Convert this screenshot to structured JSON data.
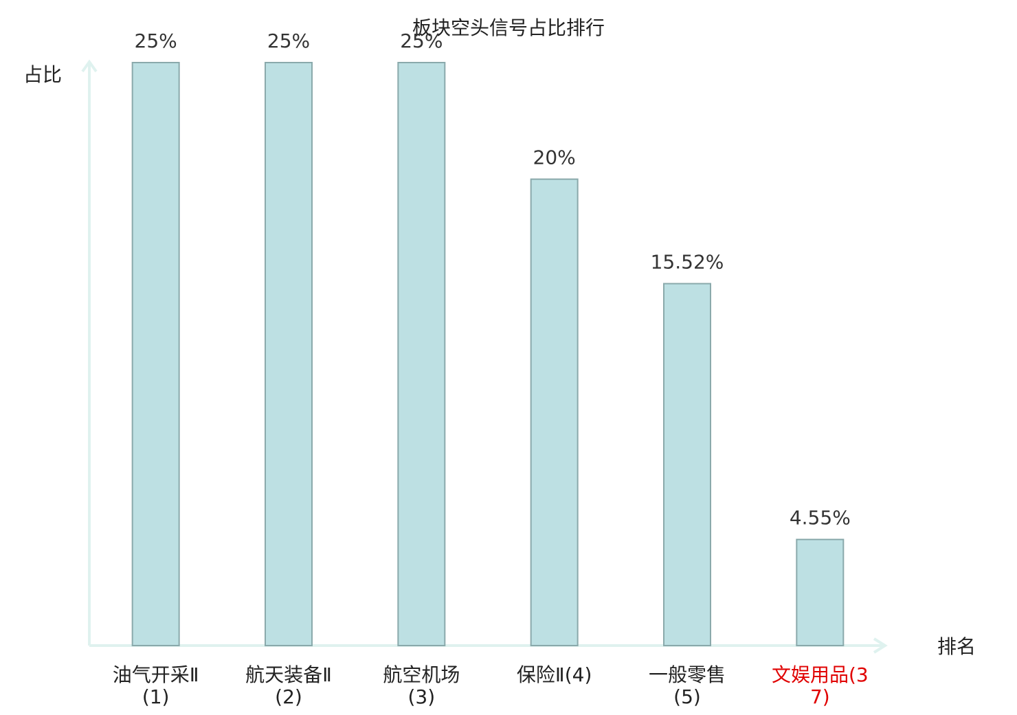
{
  "chart_data": {
    "type": "bar",
    "title": "板块空头信号占比排行",
    "x_label": "排名",
    "y_label": "占比",
    "categories": [
      "油气开采Ⅱ(1)",
      "航天装备Ⅱ(2)",
      "航空机场(3)",
      "保险Ⅱ(4)",
      "一般零售(5)",
      "文娱用品(37)"
    ],
    "label_colors": [
      "#222222",
      "#222222",
      "#222222",
      "#222222",
      "#222222",
      "#e00000"
    ],
    "values": [
      25,
      25,
      25,
      20,
      15.52,
      4.55
    ],
    "value_labels": [
      "25%",
      "25%",
      "25%",
      "20%",
      "15.52%",
      "4.55%"
    ],
    "color": "#bde0e3",
    "edge_color": "#8aa9ab",
    "ylim": [
      0,
      25
    ]
  }
}
